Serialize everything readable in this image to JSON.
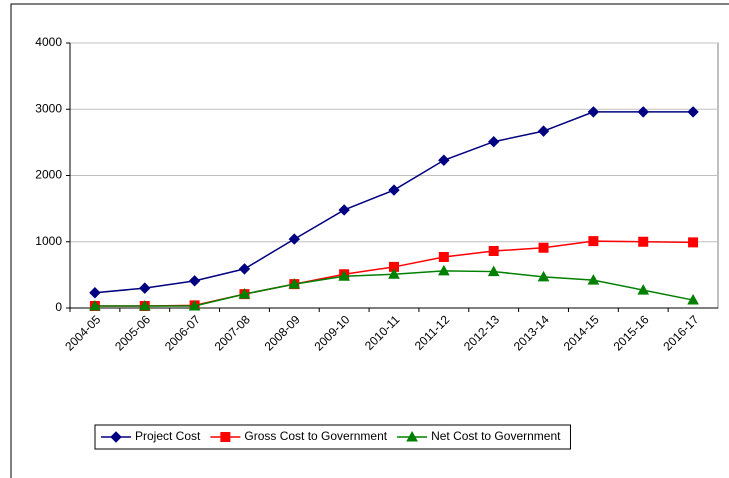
{
  "chart_data": {
    "type": "line",
    "categories": [
      "2004-05",
      "2005-06",
      "2006-07",
      "2007-08",
      "2008-09",
      "2009-10",
      "2010-11",
      "2011-12",
      "2012-13",
      "2013-14",
      "2014-15",
      "2015-16",
      "2016-17"
    ],
    "series": [
      {
        "name": "Project Cost",
        "color": "#000080",
        "marker": "diamond",
        "values": [
          230,
          300,
          410,
          590,
          1040,
          1480,
          1780,
          2230,
          2510,
          2670,
          2960,
          2960,
          2960
        ]
      },
      {
        "name": "Gross Cost to Government",
        "color": "#ff0000",
        "marker": "square",
        "values": [
          30,
          30,
          40,
          210,
          360,
          510,
          620,
          770,
          860,
          910,
          1010,
          1000,
          990
        ]
      },
      {
        "name": "Net Cost to Government",
        "color": "#008000",
        "marker": "triangle",
        "values": [
          30,
          30,
          30,
          210,
          360,
          480,
          510,
          560,
          550,
          470,
          420,
          270,
          120
        ]
      }
    ],
    "ylim": [
      0,
      4000
    ],
    "yticks": [
      0,
      1000,
      2000,
      3000,
      4000
    ],
    "grid": true,
    "legend": "bottom"
  }
}
